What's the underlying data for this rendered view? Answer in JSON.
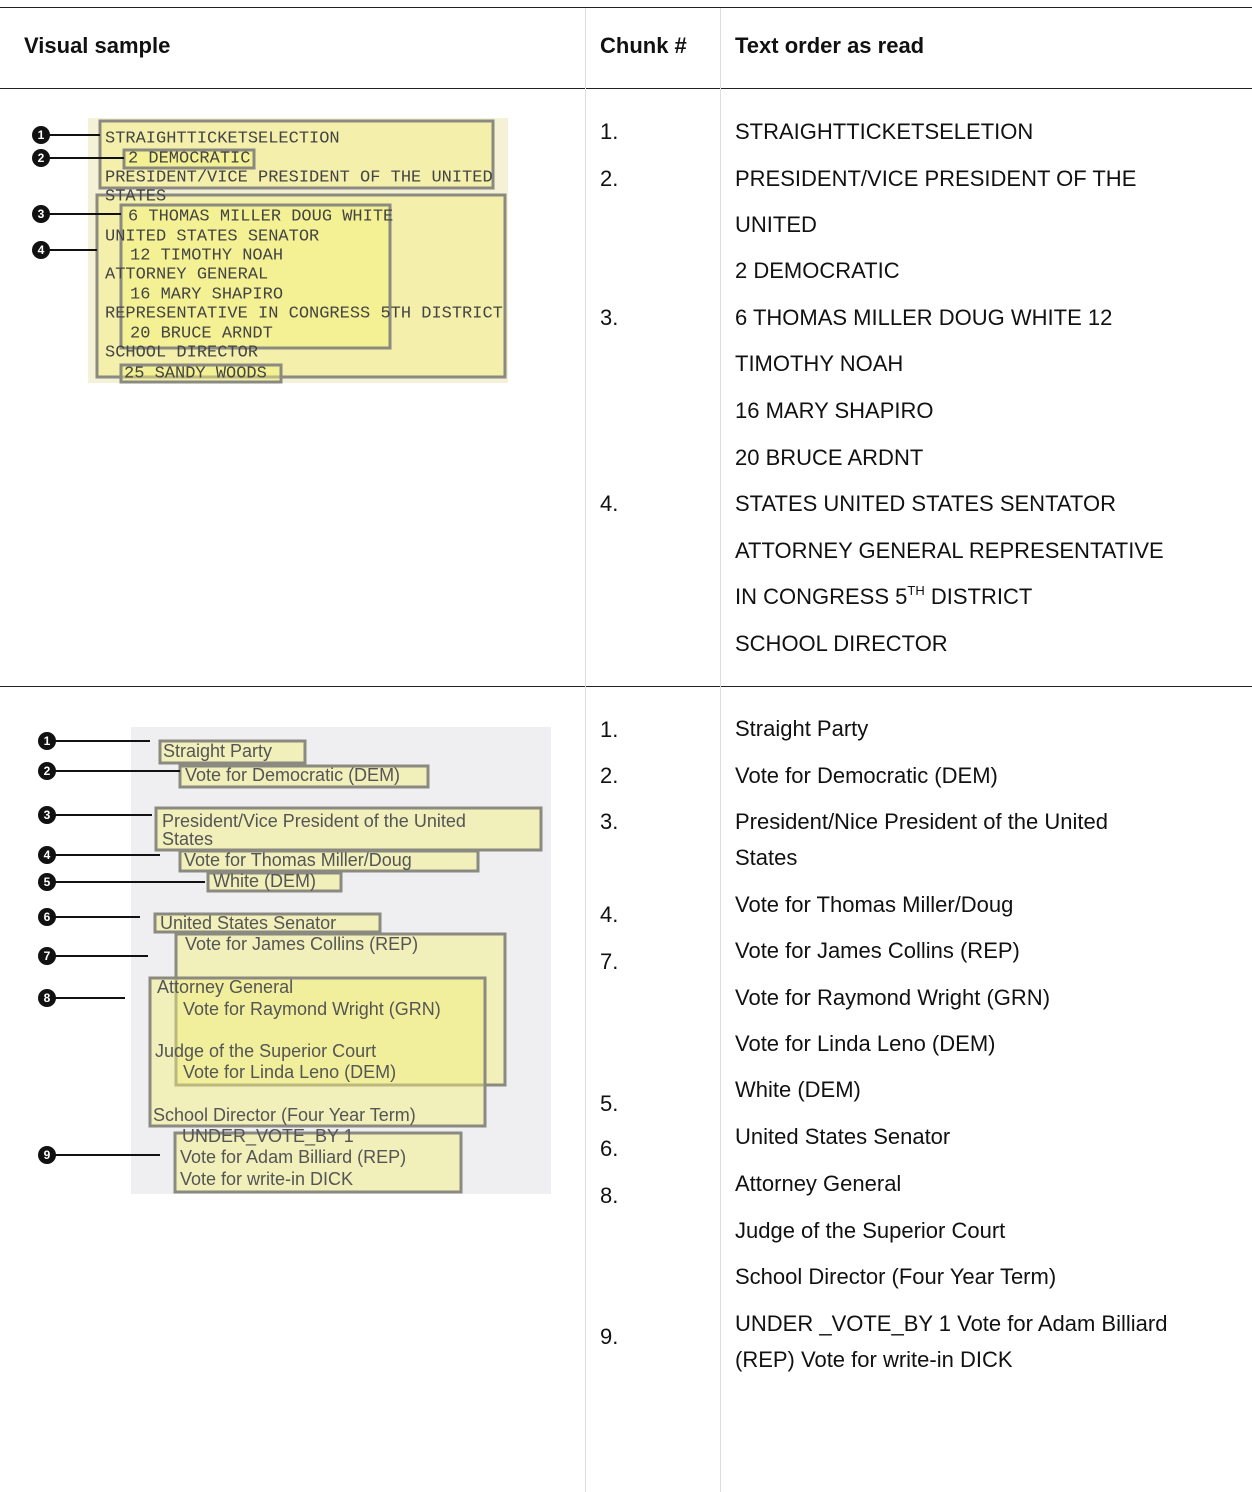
{
  "table": {
    "headers": [
      "Visual sample",
      "Chunk #",
      "Text order as read"
    ],
    "rows": [
      {
        "sample": {
          "markers": [
            "1",
            "2",
            "3",
            "4"
          ],
          "texts": [
            "STRAIGHTTICKETSELECTION",
            "2 DEMOCRATIC",
            "PRESIDENT/VICE PRESIDENT OF THE UNITED",
            "STATES",
            "6 THOMAS MILLER DOUG WHITE",
            "UNITED STATES SENATOR",
            "12 TIMOTHY NOAH",
            "ATTORNEY GENERAL",
            "16 MARY SHAPIRO",
            "REPRESENTATIVE IN CONGRESS 5TH DISTRICT",
            "20 BRUCE ARNDT",
            "SCHOOL DIRECTOR",
            "25 SANDY WOODS"
          ]
        },
        "chunks": [
          "1.",
          "2.",
          "3.",
          "4."
        ],
        "text_lines": [
          {
            "text": "STRAIGHTTICKETSELETION"
          },
          {
            "text": "PRESIDENT/VICE PRESIDENT OF THE"
          },
          {
            "text": "UNITED"
          },
          {
            "text": "2 DEMOCRATIC"
          },
          {
            "text": "6 THOMAS MILLER DOUG WHITE 12"
          },
          {
            "text": "TIMOTHY NOAH"
          },
          {
            "text": "16 MARY SHAPIRO"
          },
          {
            "text": "20 BRUCE ARDNT"
          },
          {
            "text": "STATES UNITED STATES SENTATOR"
          },
          {
            "text": "ATTORNEY GENERAL REPRESENTATIVE"
          },
          {
            "text": "IN CONGRESS 5",
            "sup": "TH",
            "tail": " DISTRICT"
          },
          {
            "text": "SCHOOL DIRECTOR"
          }
        ]
      },
      {
        "sample": {
          "markers": [
            "1",
            "2",
            "3",
            "4",
            "5",
            "6",
            "7",
            "8",
            "9"
          ],
          "texts": [
            "Straight Party",
            "Vote for Democratic (DEM)",
            "President/Vice President of the United",
            "States",
            "Vote for Thomas Miller/Doug",
            "White (DEM)",
            "United States Senator",
            "Vote for James Collins (REP)",
            "Attorney General",
            "Vote for Raymond Wright (GRN)",
            "Judge of the Superior Court",
            "Vote for Linda Leno (DEM)",
            "School Director (Four Year Term)",
            "UNDER_VOTE_BY 1",
            "Vote for Adam Billiard (REP)",
            "Vote for write-in DICK"
          ]
        },
        "chunks": [
          "1.",
          "2.",
          "3.",
          "4.",
          "7.",
          "5.",
          "6.",
          "8.",
          "9."
        ],
        "text_lines": [
          {
            "text": "Straight Party"
          },
          {
            "text": "Vote for Democratic (DEM)"
          },
          {
            "text": "President/Nice President of the United"
          },
          {
            "text": "States"
          },
          {
            "text": "Vote for Thomas Miller/Doug"
          },
          {
            "text": "Vote for James Collins (REP)"
          },
          {
            "text": "Vote for Raymond Wright (GRN)"
          },
          {
            "text": "Vote for Linda Leno (DEM)"
          },
          {
            "text": "White (DEM)"
          },
          {
            "text": "United States Senator"
          },
          {
            "text": "Attorney General"
          },
          {
            "text": "Judge of the Superior Court"
          },
          {
            "text": "School Director (Four Year Term)"
          },
          {
            "text": "UNDER _VOTE_BY 1 Vote for Adam Billiard"
          },
          {
            "text": "(REP) Vote for write-in DICK"
          }
        ]
      }
    ]
  }
}
